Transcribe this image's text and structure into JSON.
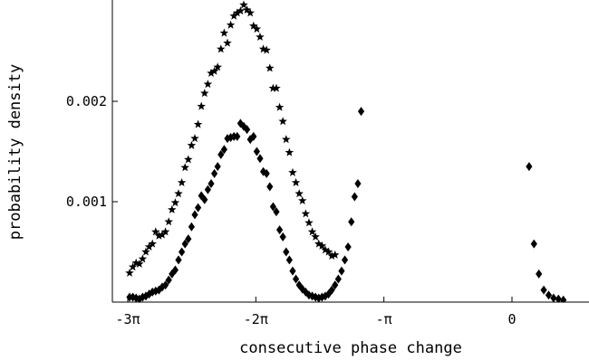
{
  "chart_data": {
    "type": "scatter",
    "title": "",
    "xlabel": "consecutive phase change",
    "ylabel": "probability density",
    "xlim": [
      -9.42478,
      0.55
    ],
    "ylim": [
      0.0,
      0.003
    ],
    "grid": false,
    "x_ticks": [
      {
        "value": -9.42478,
        "label": "-3π"
      },
      {
        "value": -6.28319,
        "label": "-2π"
      },
      {
        "value": -3.14159,
        "label": "-π"
      },
      {
        "value": 0.0,
        "label": "0"
      }
    ],
    "y_ticks": [
      {
        "value": 0.001,
        "label": "0.001"
      },
      {
        "value": 0.002,
        "label": "0.002"
      }
    ],
    "series": [
      {
        "marker": "star",
        "color": "#000000",
        "points": [
          [
            -9.38,
            0.00029
          ],
          [
            -9.3,
            0.00035
          ],
          [
            -9.22,
            0.00039
          ],
          [
            -9.14,
            0.00038
          ],
          [
            -9.06,
            0.00043
          ],
          [
            -8.98,
            0.0005
          ],
          [
            -8.9,
            0.00055
          ],
          [
            -8.82,
            0.00058
          ],
          [
            -8.74,
            0.0007
          ],
          [
            -8.66,
            0.00066
          ],
          [
            -8.58,
            0.00067
          ],
          [
            -8.5,
            0.0007
          ],
          [
            -8.42,
            0.0008
          ],
          [
            -8.34,
            0.00092
          ],
          [
            -8.26,
            0.00099
          ],
          [
            -8.18,
            0.00108
          ],
          [
            -8.1,
            0.00119
          ],
          [
            -8.02,
            0.00134
          ],
          [
            -7.94,
            0.00142
          ],
          [
            -7.86,
            0.00156
          ],
          [
            -7.78,
            0.00163
          ],
          [
            -7.7,
            0.00177
          ],
          [
            -7.62,
            0.00195
          ],
          [
            -7.54,
            0.00208
          ],
          [
            -7.46,
            0.00217
          ],
          [
            -7.38,
            0.00228
          ],
          [
            -7.3,
            0.0023
          ],
          [
            -7.22,
            0.00234
          ],
          [
            -7.14,
            0.00252
          ],
          [
            -7.06,
            0.00268
          ],
          [
            -6.98,
            0.00258
          ],
          [
            -6.9,
            0.00276
          ],
          [
            -6.82,
            0.00285
          ],
          [
            -6.74,
            0.00288
          ],
          [
            -6.66,
            0.0029
          ],
          [
            -6.58,
            0.00296
          ],
          [
            -6.5,
            0.00291
          ],
          [
            -6.42,
            0.00288
          ],
          [
            -6.34,
            0.00275
          ],
          [
            -6.26,
            0.00272
          ],
          [
            -6.18,
            0.00264
          ],
          [
            -6.1,
            0.00252
          ],
          [
            -6.02,
            0.00251
          ],
          [
            -5.94,
            0.00233
          ],
          [
            -5.86,
            0.00213
          ],
          [
            -5.78,
            0.00213
          ],
          [
            -5.7,
            0.00194
          ],
          [
            -5.62,
            0.0018
          ],
          [
            -5.54,
            0.00162
          ],
          [
            -5.46,
            0.00149
          ],
          [
            -5.38,
            0.00129
          ],
          [
            -5.3,
            0.00119
          ],
          [
            -5.22,
            0.00108
          ],
          [
            -5.14,
            0.00101
          ],
          [
            -5.06,
            0.00088
          ],
          [
            -4.98,
            0.00079
          ],
          [
            -4.9,
            0.0007
          ],
          [
            -4.82,
            0.00065
          ],
          [
            -4.74,
            0.00058
          ],
          [
            -4.66,
            0.00056
          ],
          [
            -4.58,
            0.00052
          ],
          [
            -4.5,
            0.0005
          ],
          [
            -4.42,
            0.00046
          ],
          [
            -4.34,
            0.00047
          ]
        ]
      },
      {
        "marker": "diamond",
        "color": "#000000",
        "points": [
          [
            -9.38,
            5e-05
          ],
          [
            -9.3,
            5e-05
          ],
          [
            -9.22,
            4e-05
          ],
          [
            -9.14,
            3e-05
          ],
          [
            -9.06,
            5e-05
          ],
          [
            -8.98,
            6e-05
          ],
          [
            -8.9,
            8e-05
          ],
          [
            -8.82,
            0.0001
          ],
          [
            -8.74,
            0.00011
          ],
          [
            -8.66,
            0.00012
          ],
          [
            -8.58,
            0.00015
          ],
          [
            -8.5,
            0.00017
          ],
          [
            -8.42,
            0.00022
          ],
          [
            -8.34,
            0.00028
          ],
          [
            -8.26,
            0.00032
          ],
          [
            -8.18,
            0.00042
          ],
          [
            -8.1,
            0.0005
          ],
          [
            -8.02,
            0.00058
          ],
          [
            -7.94,
            0.00063
          ],
          [
            -7.86,
            0.00075
          ],
          [
            -7.78,
            0.00087
          ],
          [
            -7.7,
            0.00094
          ],
          [
            -7.62,
            0.00106
          ],
          [
            -7.54,
            0.00102
          ],
          [
            -7.46,
            0.00112
          ],
          [
            -7.38,
            0.00118
          ],
          [
            -7.3,
            0.00128
          ],
          [
            -7.22,
            0.00135
          ],
          [
            -7.14,
            0.00147
          ],
          [
            -7.06,
            0.00152
          ],
          [
            -6.98,
            0.00163
          ],
          [
            -6.9,
            0.00164
          ],
          [
            -6.82,
            0.00165
          ],
          [
            -6.74,
            0.00165
          ],
          [
            -6.66,
            0.00178
          ],
          [
            -6.58,
            0.00175
          ],
          [
            -6.5,
            0.00172
          ],
          [
            -6.42,
            0.00162
          ],
          [
            -6.34,
            0.00165
          ],
          [
            -6.26,
            0.0015
          ],
          [
            -6.18,
            0.00143
          ],
          [
            -6.1,
            0.0013
          ],
          [
            -6.02,
            0.00128
          ],
          [
            -5.94,
            0.00115
          ],
          [
            -5.86,
            0.00095
          ],
          [
            -5.78,
            0.0009
          ],
          [
            -5.7,
            0.00072
          ],
          [
            -5.62,
            0.00065
          ],
          [
            -5.54,
            0.0005
          ],
          [
            -5.46,
            0.00042
          ],
          [
            -5.38,
            0.00031
          ],
          [
            -5.3,
            0.00023
          ],
          [
            -5.22,
            0.00017
          ],
          [
            -5.14,
            0.00013
          ],
          [
            -5.06,
            0.0001
          ],
          [
            -4.98,
            7e-05
          ],
          [
            -4.9,
            6e-05
          ],
          [
            -4.82,
            5e-05
          ],
          [
            -4.74,
            4e-05
          ],
          [
            -4.66,
            5e-05
          ],
          [
            -4.58,
            6e-05
          ],
          [
            -4.5,
            8e-05
          ],
          [
            -4.42,
            0.00012
          ],
          [
            -4.34,
            0.00017
          ],
          [
            -4.26,
            0.00023
          ],
          [
            -4.18,
            0.00031
          ],
          [
            -4.1,
            0.00042
          ],
          [
            -4.02,
            0.00055
          ],
          [
            -3.94,
            0.0008
          ],
          [
            -3.86,
            0.00105
          ],
          [
            -3.78,
            0.00118
          ],
          [
            -3.7,
            0.0019
          ],
          [
            0.42,
            0.00135
          ],
          [
            0.54,
            0.00058
          ],
          [
            0.66,
            0.00028
          ],
          [
            0.78,
            0.00012
          ],
          [
            0.9,
            7e-05
          ],
          [
            1.02,
            4e-05
          ],
          [
            1.14,
            3e-05
          ],
          [
            1.26,
            2e-05
          ]
        ]
      }
    ]
  }
}
